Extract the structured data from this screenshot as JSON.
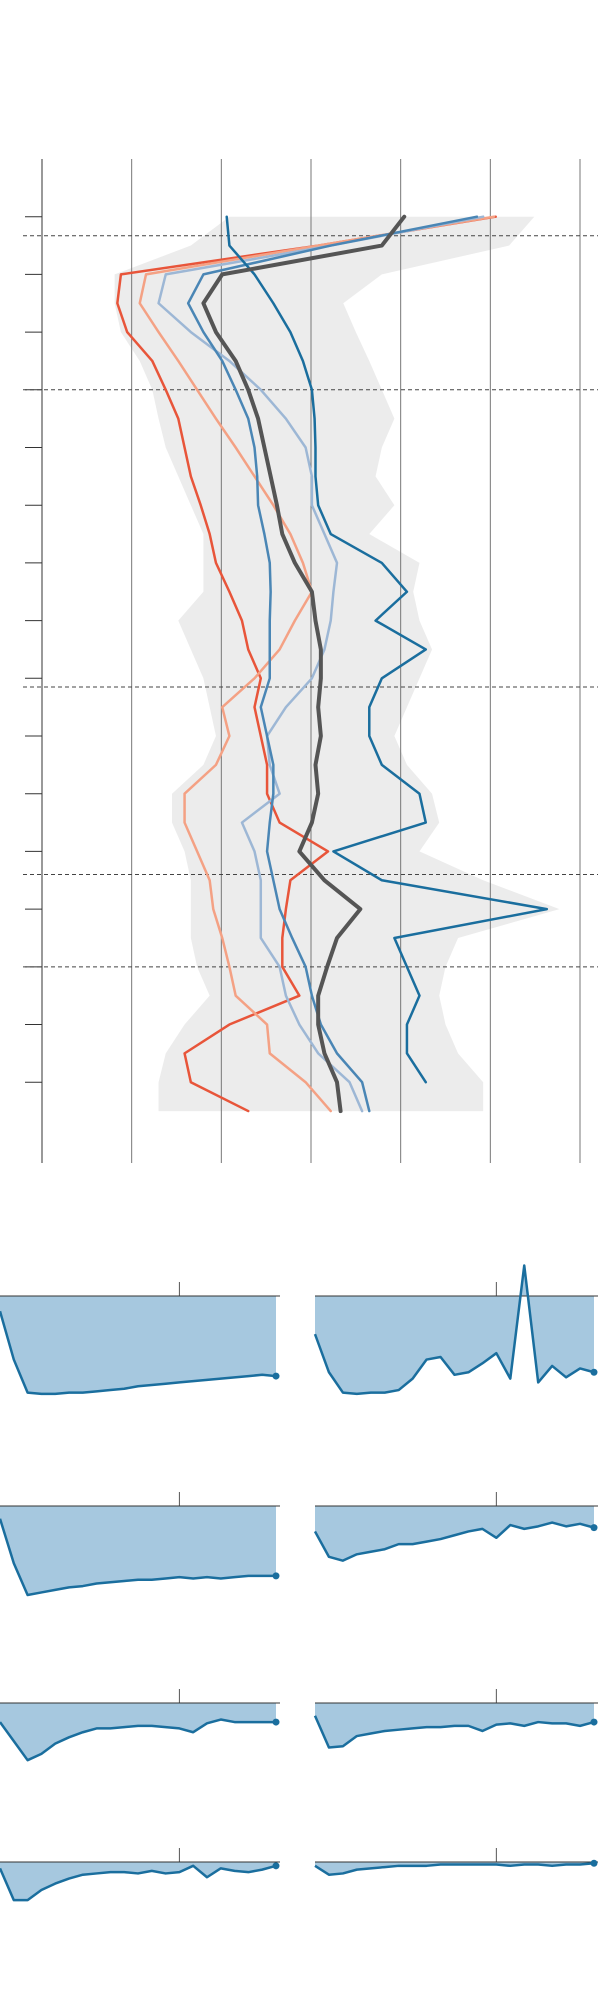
{
  "chart_data": [
    {
      "type": "line",
      "xlim": [
        0,
        6
      ],
      "xticks": [
        0,
        1,
        2,
        3,
        4,
        5,
        6
      ],
      "ylim": [
        -1,
        16.4
      ],
      "yticks": [
        0,
        1,
        2,
        3,
        4,
        5,
        6,
        7,
        8,
        9,
        10,
        11,
        12,
        13,
        14,
        15
      ],
      "hlines": [
        0.33,
        3,
        8.15,
        11.4,
        13
      ],
      "y": [
        0,
        0.5,
        1,
        1.5,
        2,
        2.5,
        3,
        3.5,
        4,
        4.5,
        5,
        5.5,
        6,
        6.5,
        7,
        7.5,
        8,
        8.5,
        9,
        9.5,
        10,
        10.5,
        11,
        11.5,
        12,
        12.5,
        13,
        13.5,
        14,
        14.5,
        15,
        15.5
      ],
      "band": {
        "color": "#ececec",
        "low": [
          2.09,
          1.66,
          0.81,
          0.81,
          0.88,
          1.09,
          1.23,
          1.3,
          1.38,
          1.52,
          1.66,
          1.8,
          1.8,
          1.8,
          1.52,
          1.66,
          1.8,
          1.87,
          1.94,
          1.8,
          1.45,
          1.45,
          1.59,
          1.66,
          1.66,
          1.66,
          1.73,
          1.87,
          1.59,
          1.38,
          1.3,
          1.3
        ],
        "high": [
          5.49,
          5.21,
          3.79,
          3.36,
          3.5,
          3.65,
          3.79,
          3.93,
          3.79,
          3.72,
          3.93,
          3.65,
          4.21,
          4.14,
          4.21,
          4.35,
          4.21,
          4.07,
          3.93,
          4.07,
          4.35,
          4.43,
          4.21,
          4.92,
          5.77,
          4.64,
          4.5,
          4.43,
          4.5,
          4.64,
          4.92,
          4.92
        ]
      },
      "series": [
        {
          "color": "#e8553a",
          "values": [
            5.06,
            3.08,
            0.88,
            0.84,
            0.95,
            1.23,
            1.38,
            1.52,
            1.59,
            1.66,
            1.77,
            1.87,
            1.94,
            2.09,
            2.23,
            2.3,
            2.44,
            2.37,
            2.44,
            2.51,
            2.51,
            2.65,
            3.19,
            2.77,
            2.72,
            2.68,
            2.68,
            2.87,
            2.09,
            1.59,
            1.66,
            2.3
          ]
        },
        {
          "color": "#f4a184",
          "values": [
            5.04,
            3.08,
            1.16,
            1.09,
            1.3,
            1.52,
            1.73,
            1.94,
            2.16,
            2.37,
            2.58,
            2.77,
            2.91,
            3.01,
            2.82,
            2.65,
            2.37,
            2.01,
            2.09,
            1.94,
            1.59,
            1.59,
            1.73,
            1.87,
            1.91,
            2.01,
            2.09,
            2.16,
            2.51,
            2.54,
            2.94,
            3.22
          ]
        },
        {
          "color": "#9db7d5",
          "values": [
            4.92,
            3.22,
            1.38,
            1.3,
            1.66,
            2.09,
            2.44,
            2.72,
            2.94,
            3.01,
            3.01,
            3.15,
            3.29,
            3.25,
            3.22,
            3.15,
            3.01,
            2.72,
            2.51,
            2.54,
            2.65,
            2.23,
            2.37,
            2.44,
            2.44,
            2.44,
            2.65,
            2.72,
            2.87,
            3.08,
            3.43,
            3.57
          ]
        },
        {
          "color": "#4a86b5",
          "values": [
            4.85,
            3.22,
            1.8,
            1.63,
            1.8,
            2.01,
            2.16,
            2.3,
            2.37,
            2.4,
            2.41,
            2.48,
            2.54,
            2.55,
            2.54,
            2.54,
            2.54,
            2.44,
            2.51,
            2.58,
            2.58,
            2.54,
            2.51,
            2.58,
            2.65,
            2.79,
            2.94,
            3.01,
            3.11,
            3.29,
            3.57,
            3.65
          ]
        },
        {
          "color": "#1a6e9e",
          "values": [
            2.06,
            2.09,
            2.37,
            2.58,
            2.77,
            2.91,
            3.01,
            3.04,
            3.05,
            3.05,
            3.08,
            3.22,
            3.79,
            4.07,
            3.72,
            4.28,
            3.79,
            3.65,
            3.65,
            3.79,
            4.21,
            4.28,
            3.25,
            3.79,
            5.63,
            3.93,
            4.07,
            4.21,
            4.07,
            4.07,
            4.28,
            null
          ]
        },
        {
          "color": "#555555",
          "width": 4,
          "values": [
            4.04,
            3.79,
            2.01,
            1.8,
            1.94,
            2.16,
            2.3,
            2.41,
            2.48,
            2.55,
            2.62,
            2.68,
            2.82,
            3.01,
            3.05,
            3.11,
            3.11,
            3.08,
            3.11,
            3.05,
            3.08,
            3.01,
            2.87,
            3.15,
            3.55,
            3.29,
            3.18,
            3.08,
            3.08,
            3.15,
            3.29,
            3.33
          ]
        }
      ]
    },
    {
      "type": "area",
      "xlim": [
        0,
        20
      ],
      "xticks": [
        13
      ],
      "ylim": [
        -8,
        2.5
      ],
      "color": "#1a6e9e",
      "fill": "#a6c8df",
      "panels": [
        {
          "values": [
            -1.2,
            -5,
            -7.6,
            -7.7,
            -7.7,
            -7.6,
            -7.6,
            -7.5,
            -7.4,
            -7.3,
            -7.1,
            -7.0,
            -6.9,
            -6.8,
            -6.7,
            -6.6,
            -6.5,
            -6.4,
            -6.3,
            -6.2,
            -6.3
          ]
        },
        {
          "values": [
            -3,
            -6,
            -7.6,
            -7.7,
            -7.6,
            -7.6,
            -7.4,
            -6.5,
            -5,
            -4.8,
            -6.2,
            -6,
            -5.3,
            -4.5,
            -6.5,
            2.4,
            -6.8,
            -5.5,
            -6.4,
            -5.7,
            -6
          ]
        },
        {
          "values": [
            -1,
            -4.5,
            -7,
            -6.8,
            -6.6,
            -6.4,
            -6.3,
            -6.1,
            -6.0,
            -5.9,
            -5.8,
            -5.8,
            -5.7,
            -5.6,
            -5.7,
            -5.6,
            -5.7,
            -5.6,
            -5.5,
            -5.5,
            -5.5
          ]
        },
        {
          "values": [
            -2,
            -4,
            -4.3,
            -3.8,
            -3.6,
            -3.4,
            -3.0,
            -3.0,
            -2.8,
            -2.6,
            -2.3,
            -2.0,
            -1.8,
            -2.5,
            -1.5,
            -1.8,
            -1.6,
            -1.3,
            -1.6,
            -1.4,
            -1.7
          ]
        },
        {
          "values": [
            -1.5,
            -3,
            -4.5,
            -4,
            -3.2,
            -2.7,
            -2.3,
            -2.0,
            -2.0,
            -1.9,
            -1.8,
            -1.8,
            -1.9,
            -2.0,
            -2.3,
            -1.6,
            -1.3,
            -1.5,
            -1.5,
            -1.5,
            -1.5
          ]
        },
        {
          "values": [
            -1,
            -3.5,
            -3.4,
            -2.6,
            -2.4,
            -2.2,
            -2.1,
            -2.0,
            -1.9,
            -1.9,
            -1.8,
            -1.8,
            -2.2,
            -1.7,
            -1.6,
            -1.8,
            -1.5,
            -1.6,
            -1.6,
            -1.8,
            -1.5
          ]
        },
        {
          "values": [
            -0.5,
            -3,
            -3,
            -2.2,
            -1.7,
            -1.3,
            -1.0,
            -0.9,
            -0.8,
            -0.8,
            -0.9,
            -0.7,
            -0.9,
            -0.8,
            -0.3,
            -1.2,
            -0.5,
            -0.7,
            -0.8,
            -0.6,
            -0.3
          ]
        },
        {
          "values": [
            -0.3,
            -1,
            -0.9,
            -0.6,
            -0.5,
            -0.4,
            -0.3,
            -0.3,
            -0.3,
            -0.2,
            -0.2,
            -0.2,
            -0.2,
            -0.2,
            -0.3,
            -0.2,
            -0.2,
            -0.3,
            -0.2,
            -0.2,
            -0.1
          ]
        }
      ]
    }
  ]
}
